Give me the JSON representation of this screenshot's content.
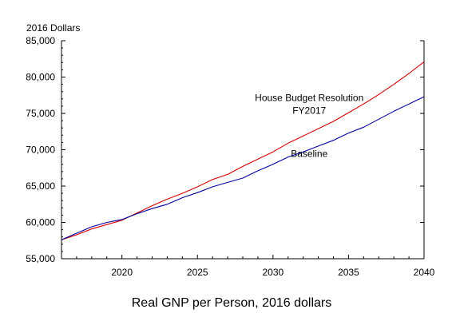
{
  "chart_data": {
    "type": "line",
    "title": "",
    "caption": "Real GNP per Person, 2016 dollars",
    "ylabel": "2016 Dollars",
    "xlabel": "",
    "xlim": [
      2016,
      2040
    ],
    "ylim": [
      55000,
      85000
    ],
    "x_ticks": [
      2020,
      2025,
      2030,
      2035,
      2040
    ],
    "y_ticks": [
      55000,
      60000,
      65000,
      70000,
      75000,
      80000,
      85000
    ],
    "y_tick_labels": [
      "55,000",
      "60,000",
      "65,000",
      "70,000",
      "75,000",
      "80,000",
      "85,000"
    ],
    "grid": false,
    "legend": "none",
    "x": [
      2016,
      2017,
      2018,
      2019,
      2020,
      2021,
      2022,
      2023,
      2024,
      2025,
      2026,
      2027,
      2028,
      2029,
      2030,
      2031,
      2032,
      2033,
      2034,
      2035,
      2036,
      2037,
      2038,
      2039,
      2040
    ],
    "series": [
      {
        "color": "#d40000",
        "values": [
          57600,
          58300,
          59100,
          59700,
          60300,
          61300,
          62300,
          63200,
          64000,
          64900,
          65900,
          66600,
          67700,
          68700,
          69700,
          70900,
          71900,
          72900,
          73900,
          75100,
          76300,
          77600,
          79000,
          80500,
          82100
        ]
      },
      {
        "color": "#0000a0",
        "values": [
          57600,
          58500,
          59400,
          60000,
          60400,
          61200,
          61900,
          62500,
          63400,
          64100,
          64900,
          65500,
          66100,
          67100,
          68000,
          69000,
          69700,
          70500,
          71300,
          72300,
          73100,
          74200,
          75300,
          76300,
          77300
        ]
      }
    ],
    "annotations": [
      {
        "lines": [
          "House Budget Resolution",
          "FY2017"
        ],
        "series": 0,
        "x": 2032.4,
        "y": 76700
      },
      {
        "lines": [
          "Baseline"
        ],
        "series": 1,
        "x": 2032.4,
        "y": 69000
      }
    ]
  }
}
